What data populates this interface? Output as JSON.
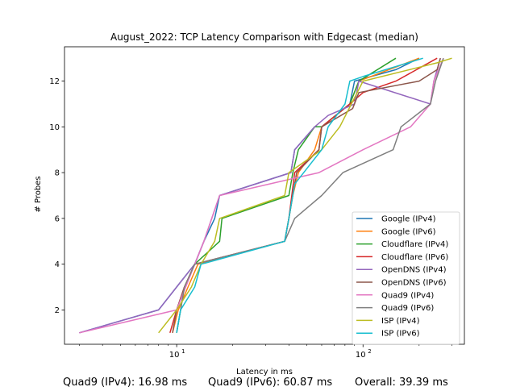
{
  "chart_data": {
    "type": "line",
    "title": "August_2022: TCP Latency Comparison with Edgecast (median)",
    "xlabel": "Latency in ms",
    "ylabel": "# Probes",
    "xscale": "log",
    "xlim": [
      2.5,
      350
    ],
    "ylim": [
      0.5,
      13.5
    ],
    "x_ticks": [
      {
        "value": 10,
        "base": "10",
        "exp": "1"
      },
      {
        "value": 100,
        "base": "10",
        "exp": "2"
      }
    ],
    "y_ticks": [
      2,
      4,
      6,
      8,
      10,
      12
    ],
    "legend_position": "lower-right",
    "grid": false,
    "series": [
      {
        "name": "Google (IPv4)",
        "color": "#1f77b4",
        "x": [
          3.0,
          8.0,
          10.0,
          12.5,
          14.0,
          16.0,
          17.0,
          41.0,
          43.0,
          55.0,
          60.0,
          85.0,
          90.0,
          150.0,
          200.0
        ],
        "y": [
          1,
          2,
          3,
          4,
          5,
          6,
          7,
          8,
          9,
          10,
          10,
          11,
          12,
          12.5,
          13
        ]
      },
      {
        "name": "Google (IPv6)",
        "color": "#ff7f0e",
        "x": [
          9.5,
          10.2,
          11.5,
          13.0,
          38.0,
          40.0,
          42.0,
          45.0,
          55.0,
          60.0,
          85.0,
          95.0,
          200.0
        ],
        "y": [
          1,
          2,
          3,
          4,
          5,
          6,
          7,
          8,
          9,
          10,
          11,
          12,
          13
        ]
      },
      {
        "name": "Cloudflare (IPv4)",
        "color": "#2ca02c",
        "x": [
          10.0,
          10.5,
          11.0,
          12.5,
          17.0,
          17.5,
          40.0,
          42.0,
          45.0,
          55.0,
          60.0,
          85.0,
          95.0,
          150.0
        ],
        "y": [
          1,
          2,
          3,
          4,
          5,
          6,
          7,
          8,
          9,
          10,
          10,
          11,
          12,
          13
        ]
      },
      {
        "name": "Cloudflare (IPv6)",
        "color": "#d62728",
        "x": [
          9.2,
          10.0,
          11.0,
          12.5,
          38.0,
          40.0,
          43.0,
          58.0,
          60.0,
          85.0,
          100.0,
          150.0,
          250.0
        ],
        "y": [
          1,
          2,
          3,
          4,
          5,
          6,
          8,
          9,
          10,
          11,
          11.5,
          12,
          13
        ]
      },
      {
        "name": "OpenDNS (IPv4)",
        "color": "#9467bd",
        "x": [
          3.0,
          8.0,
          10.0,
          12.5,
          14.0,
          17.0,
          41.0,
          43.0,
          55.0,
          65.0,
          90.0,
          95.0,
          230.0,
          240.0,
          260.0
        ],
        "y": [
          1,
          2,
          3,
          4,
          5,
          7,
          8,
          9,
          10,
          10.5,
          11,
          12,
          11,
          12,
          13
        ]
      },
      {
        "name": "OpenDNS (IPv6)",
        "color": "#8c564b",
        "x": [
          9.5,
          10.0,
          11.0,
          12.5,
          38.0,
          40.0,
          44.0,
          58.0,
          60.0,
          88.0,
          95.0,
          200.0,
          250.0,
          260.0
        ],
        "y": [
          1,
          2,
          3,
          4,
          5,
          6,
          8,
          9,
          10,
          10.8,
          11.5,
          12,
          12.5,
          13
        ]
      },
      {
        "name": "Quad9 (IPv4)",
        "color": "#e377c2",
        "x": [
          3.0,
          10.0,
          12.5,
          14.0,
          17.0,
          40.0,
          58.0,
          100.0,
          180.0,
          230.0,
          240.0,
          270.0
        ],
        "y": [
          1,
          2,
          4,
          5,
          7,
          7.7,
          8,
          9,
          10,
          11,
          12,
          13
        ]
      },
      {
        "name": "Quad9 (IPv6)",
        "color": "#7f7f7f",
        "x": [
          10.0,
          10.5,
          11.0,
          12.5,
          38.0,
          43.0,
          60.0,
          78.0,
          145.0,
          160.0,
          230.0,
          245.0,
          270.0
        ],
        "y": [
          1,
          2,
          3,
          4,
          5,
          6,
          7,
          8,
          9,
          10,
          11,
          12,
          13
        ]
      },
      {
        "name": "ISP (IPv4)",
        "color": "#bcbd22",
        "x": [
          8.0,
          10.0,
          12.0,
          13.5,
          16.0,
          17.0,
          38.0,
          40.0,
          60.0,
          75.0,
          100.0,
          250.0,
          300.0
        ],
        "y": [
          1,
          2,
          3,
          4,
          5,
          6,
          7,
          8,
          9,
          10,
          12,
          12.8,
          13
        ]
      },
      {
        "name": "ISP (IPv6)",
        "color": "#17becf",
        "x": [
          10.0,
          10.5,
          12.5,
          13.5,
          38.0,
          40.0,
          43.0,
          60.0,
          65.0,
          80.0,
          85.0,
          100.0,
          210.0
        ],
        "y": [
          1,
          2,
          3,
          4,
          5,
          6,
          7.5,
          9,
          10,
          11,
          12,
          12.2,
          13
        ]
      }
    ]
  },
  "footer": {
    "quad9_v4": "Quad9 (IPv4): 16.98 ms",
    "quad9_v6": "Quad9 (IPv6): 60.87 ms",
    "overall": "Overall: 39.39 ms"
  }
}
